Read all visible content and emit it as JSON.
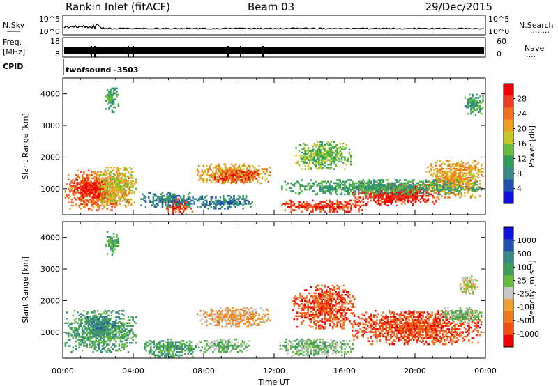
{
  "header": {
    "station": "Rankin Inlet (fitACF)",
    "beam": "Beam 03",
    "date": "29/Dec/2015"
  },
  "strips": {
    "nsky_label": "N.Sky",
    "nsearch_label": "N.Search",
    "nsearch_dots": "........",
    "left_ticks_top": [
      "10^5",
      "10^0"
    ],
    "right_ticks_top": [
      "10^5",
      "10^0"
    ],
    "freq_label": "Freq.",
    "freq_unit": "[MHz]",
    "freq_ticks": [
      "18",
      "8"
    ],
    "nave_label": "Nave",
    "nave_dots": "....",
    "nave_ticks": [
      "60",
      "0"
    ],
    "cpid_label": "CPID",
    "cpid_value": "twofsound  -3503"
  },
  "colors": {
    "power": [
      "#1010e0",
      "#2050b0",
      "#3a8a8a",
      "#2f9e5a",
      "#64be3c",
      "#c8c828",
      "#f0a020",
      "#f07020",
      "#f03c1e",
      "#f00000"
    ],
    "velocity": [
      "#f00000",
      "#f05010",
      "#f07820",
      "#f0a030",
      "#c8c8c8",
      "#64be3c",
      "#3c9e5a",
      "#3a8a8a",
      "#2050b0",
      "#1010e0"
    ]
  },
  "chart_data": [
    {
      "type": "heatmap",
      "panel": "power",
      "xlabel": "",
      "ylabel": "Slant Range [km]",
      "x_ticks": [
        "00:00",
        "04:00",
        "08:00",
        "12:00",
        "16:00",
        "20:00",
        "00:00"
      ],
      "y_ticks": [
        1000,
        2000,
        3000,
        4000
      ],
      "xlim": [
        0,
        24
      ],
      "ylim": [
        180,
        4500
      ],
      "colorbar_label": "Power [dB]",
      "colorbar_ticks": [
        "4",
        "8",
        "12",
        "16",
        "20",
        "24",
        "28"
      ],
      "regions": [
        {
          "t0": 0.1,
          "t1": 3.8,
          "r0": 300,
          "r1": 1600,
          "level": 7
        },
        {
          "t0": 0.6,
          "t1": 2.6,
          "r0": 700,
          "r1": 1300,
          "level": 9
        },
        {
          "t0": 2.0,
          "t1": 4.2,
          "r0": 450,
          "r1": 1700,
          "level": 5
        },
        {
          "t0": 5.7,
          "t1": 7.4,
          "r0": 200,
          "r1": 700,
          "level": 8
        },
        {
          "t0": 4.4,
          "t1": 7.6,
          "r0": 400,
          "r1": 900,
          "level": 2
        },
        {
          "t0": 7.6,
          "t1": 11.8,
          "r0": 1150,
          "r1": 1800,
          "level": 6
        },
        {
          "t0": 8.6,
          "t1": 11.2,
          "r0": 1200,
          "r1": 1600,
          "level": 8
        },
        {
          "t0": 7.6,
          "t1": 10.8,
          "r0": 350,
          "r1": 800,
          "level": 2
        },
        {
          "t0": 12.4,
          "t1": 17.2,
          "r0": 250,
          "r1": 650,
          "level": 8
        },
        {
          "t0": 13.2,
          "t1": 16.4,
          "r0": 1600,
          "r1": 2500,
          "level": 4
        },
        {
          "t0": 16.4,
          "t1": 21.4,
          "r0": 450,
          "r1": 1200,
          "level": 8
        },
        {
          "t0": 17.8,
          "t1": 20.6,
          "r0": 550,
          "r1": 1100,
          "level": 9
        },
        {
          "t0": 20.6,
          "t1": 23.9,
          "r0": 700,
          "r1": 1900,
          "level": 6
        },
        {
          "t0": 12.4,
          "t1": 23.8,
          "r0": 800,
          "r1": 1300,
          "level": 3
        },
        {
          "t0": 2.4,
          "t1": 3.2,
          "r0": 3400,
          "r1": 4200,
          "level": 3
        },
        {
          "t0": 22.8,
          "t1": 23.9,
          "r0": 3300,
          "r1": 4000,
          "level": 3
        }
      ]
    },
    {
      "type": "heatmap",
      "panel": "velocity",
      "xlabel": "Time UT",
      "ylabel": "Slant Range [km]",
      "x_ticks": [
        "00:00",
        "04:00",
        "08:00",
        "12:00",
        "16:00",
        "20:00",
        "00:00"
      ],
      "y_ticks": [
        1000,
        2000,
        3000,
        4000
      ],
      "xlim": [
        0,
        24
      ],
      "ylim": [
        180,
        4500
      ],
      "colorbar_label": "Velocity [m s⁻¹]",
      "colorbar_ticks": [
        "1000",
        "500",
        "100",
        "25",
        "-25",
        "-100",
        "-500",
        "-1000"
      ],
      "regions": [
        {
          "t0": 0.1,
          "t1": 4.2,
          "r0": 350,
          "r1": 1700,
          "level": 6
        },
        {
          "t0": 1.2,
          "t1": 3.0,
          "r0": 1000,
          "r1": 1500,
          "level": 7
        },
        {
          "t0": 4.6,
          "t1": 7.6,
          "r0": 200,
          "r1": 800,
          "level": 6
        },
        {
          "t0": 7.6,
          "t1": 11.8,
          "r0": 1150,
          "r1": 1800,
          "level": 3
        },
        {
          "t0": 7.6,
          "t1": 10.6,
          "r0": 350,
          "r1": 800,
          "level": 5
        },
        {
          "t0": 12.3,
          "t1": 16.5,
          "r0": 250,
          "r1": 800,
          "level": 5
        },
        {
          "t0": 13.0,
          "t1": 16.6,
          "r0": 1100,
          "r1": 2500,
          "level": 1
        },
        {
          "t0": 16.4,
          "t1": 23.8,
          "r0": 600,
          "r1": 1700,
          "level": 1
        },
        {
          "t0": 21.4,
          "t1": 23.9,
          "r0": 1300,
          "r1": 1800,
          "level": 5
        },
        {
          "t0": 22.4,
          "t1": 23.6,
          "r0": 2200,
          "r1": 2800,
          "level": 4
        },
        {
          "t0": 2.4,
          "t1": 3.2,
          "r0": 3400,
          "r1": 4200,
          "level": 6
        }
      ]
    }
  ]
}
